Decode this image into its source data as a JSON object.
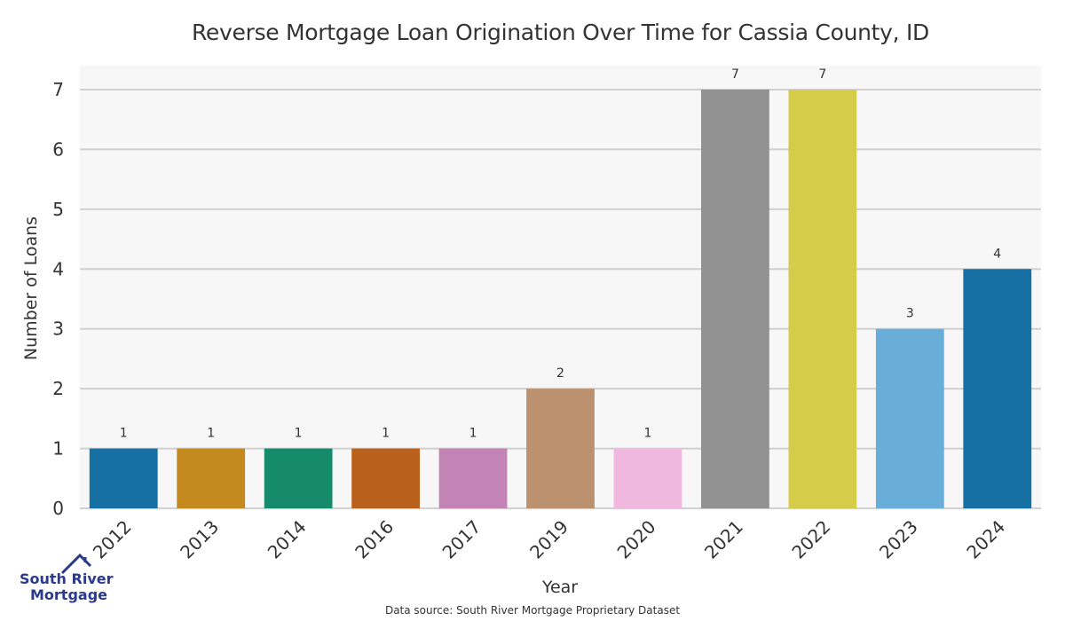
{
  "chart_data": {
    "type": "bar",
    "title": "Reverse Mortgage Loan Origination Over Time for Cassia County, ID",
    "xlabel": "Year",
    "ylabel": "Number of Loans",
    "categories": [
      "2012",
      "2013",
      "2014",
      "2016",
      "2017",
      "2019",
      "2020",
      "2021",
      "2022",
      "2023",
      "2024"
    ],
    "values": [
      1,
      1,
      1,
      1,
      1,
      2,
      1,
      7,
      7,
      3,
      4
    ],
    "colors": [
      "#1770a4",
      "#c4891f",
      "#168b6c",
      "#ba601d",
      "#c283b5",
      "#bb9170",
      "#f1b8df",
      "#929292",
      "#d5cc4a",
      "#68aed8",
      "#1770a4"
    ],
    "ylim": [
      0,
      7.4
    ],
    "yticks": [
      0,
      1,
      2,
      3,
      4,
      5,
      6,
      7
    ],
    "grid": true,
    "data_labels": true
  },
  "footer": {
    "source": "Data source: South River Mortgage Proprietary Dataset",
    "logo_line1": "South River",
    "logo_line2": "Mortgage"
  }
}
